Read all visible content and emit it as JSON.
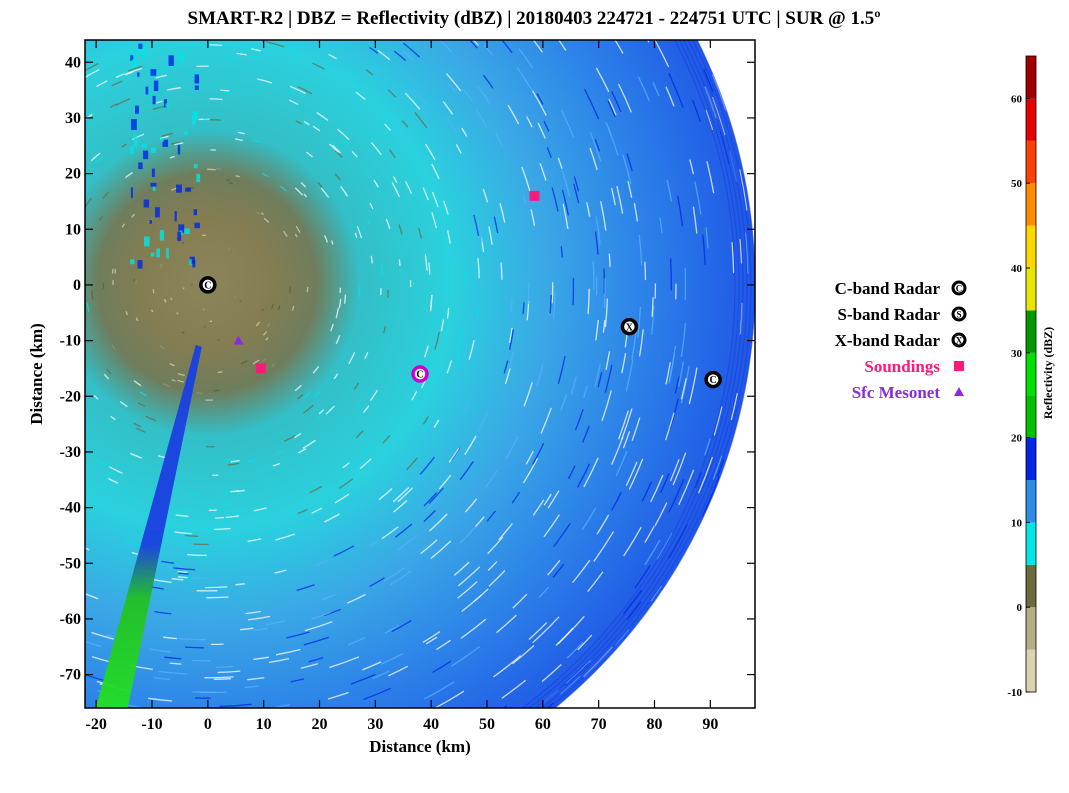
{
  "chart_data": {
    "type": "scatter",
    "title": "SMART-R2 | DBZ = Reflectivity (dBZ) | 20180403 224721 - 224751 UTC | SUR @ 1.5º",
    "xlabel": "Distance (km)",
    "ylabel": "Distance (km)",
    "xlim": [
      -22,
      98
    ],
    "ylim": [
      -76,
      44
    ],
    "xticks": [
      -20,
      -10,
      0,
      10,
      20,
      30,
      40,
      50,
      60,
      70,
      80,
      90
    ],
    "yticks": [
      40,
      30,
      20,
      10,
      0,
      -10,
      -20,
      -30,
      -40,
      -50,
      -60,
      -70
    ],
    "xtick_labels": [
      "-20",
      "-10",
      "0",
      "10",
      "20",
      "30",
      "40",
      "50",
      "60",
      "70",
      "80",
      "90"
    ],
    "ytick_labels": [
      "40",
      "30",
      "20",
      "10",
      "0",
      "-10",
      "-20",
      "-30",
      "-40",
      "-50",
      "-60",
      "-70"
    ],
    "radar_field": {
      "center": [
        0,
        0
      ],
      "max_range_km": 98
    },
    "markers": [
      {
        "series": "C-band Radar",
        "x": 0,
        "y": 0,
        "letter": "C",
        "ring": "#000000"
      },
      {
        "series": "C-band Radar",
        "x": 38,
        "y": -16,
        "letter": "C",
        "ring": "#cc00cc"
      },
      {
        "series": "C-band Radar",
        "x": 90.5,
        "y": -17,
        "letter": "C",
        "ring": "#000000"
      },
      {
        "series": "X-band Radar",
        "x": 75.5,
        "y": -7.5,
        "letter": "X",
        "ring": "#000000"
      },
      {
        "series": "Soundings",
        "x": 58.5,
        "y": 16,
        "color": "#ff1a7a"
      },
      {
        "series": "Soundings",
        "x": 9.5,
        "y": -15,
        "color": "#ff1a7a"
      },
      {
        "series": "Sfc Mesonet",
        "x": 5.5,
        "y": -10,
        "color": "#8a2be2"
      }
    ],
    "legend": [
      {
        "label": "C-band Radar",
        "symbol": "C",
        "color": "#000000"
      },
      {
        "label": "S-band Radar",
        "symbol": "S",
        "color": "#000000"
      },
      {
        "label": "X-band Radar",
        "symbol": "X",
        "color": "#000000"
      },
      {
        "label": "Soundings",
        "symbol": "square",
        "color": "#ff1a7a"
      },
      {
        "label": "Sfc Mesonet",
        "symbol": "triangle",
        "color": "#8a2be2"
      }
    ],
    "legend_position": "right",
    "colorbar": {
      "label": "Reflectivity (dBZ)",
      "min": -10,
      "max": 65,
      "ticks": [
        -10,
        0,
        10,
        20,
        30,
        40,
        50,
        60
      ],
      "tick_labels": [
        "-10",
        "0",
        "10",
        "20",
        "30",
        "40",
        "50",
        "60"
      ],
      "bins": [
        {
          "from": -10,
          "to": -5,
          "color": "#d9d3b0"
        },
        {
          "from": -5,
          "to": 0,
          "color": "#b5ad85"
        },
        {
          "from": 0,
          "to": 5,
          "color": "#6b6b40"
        },
        {
          "from": 5,
          "to": 10,
          "color": "#00e5e5"
        },
        {
          "from": 10,
          "to": 15,
          "color": "#2e8be6"
        },
        {
          "from": 15,
          "to": 20,
          "color": "#0026e6"
        },
        {
          "from": 20,
          "to": 25,
          "color": "#00c000"
        },
        {
          "from": 25,
          "to": 30,
          "color": "#00e000"
        },
        {
          "from": 30,
          "to": 35,
          "color": "#009900"
        },
        {
          "from": 35,
          "to": 40,
          "color": "#e6e600"
        },
        {
          "from": 40,
          "to": 45,
          "color": "#ffd700"
        },
        {
          "from": 45,
          "to": 50,
          "color": "#ff8c00"
        },
        {
          "from": 50,
          "to": 55,
          "color": "#ff4000"
        },
        {
          "from": 55,
          "to": 60,
          "color": "#e60000"
        },
        {
          "from": 60,
          "to": 65,
          "color": "#a00000"
        }
      ]
    }
  }
}
